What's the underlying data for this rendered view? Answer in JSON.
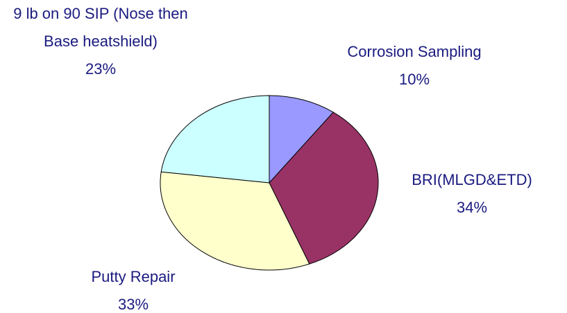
{
  "chart_data": {
    "type": "pie",
    "categories": [
      "Corrosion Sampling",
      "BRI(MLGD&ETD)",
      "Putty Repair",
      "9 lb on 90 SIP (Nose then Base heatshield)"
    ],
    "values": [
      10,
      34,
      33,
      23
    ],
    "value_labels": [
      "10%",
      "34%",
      "33%",
      "23%"
    ],
    "colors": [
      "#9999ff",
      "#993366",
      "#ffffcc",
      "#ccffff"
    ]
  }
}
